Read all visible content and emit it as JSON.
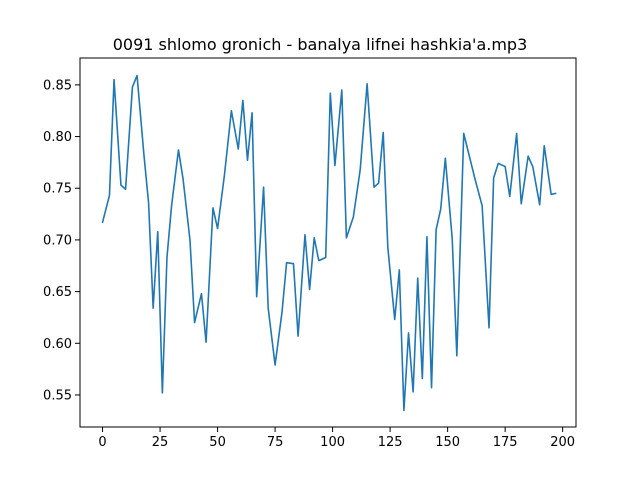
{
  "chart_data": {
    "type": "line",
    "title": "0091 shlomo gronich - banalya lifnei hashkia'a.mp3",
    "xlabel": "",
    "ylabel": "",
    "xlim": [
      -9.8,
      205.8
    ],
    "ylim": [
      0.519,
      0.876
    ],
    "x_ticks": [
      0,
      25,
      50,
      75,
      100,
      125,
      150,
      175,
      200
    ],
    "x_tick_labels": [
      "0",
      "25",
      "50",
      "75",
      "100",
      "125",
      "150",
      "175",
      "200"
    ],
    "y_ticks": [
      0.55,
      0.6,
      0.65,
      0.7,
      0.75,
      0.8,
      0.85
    ],
    "y_tick_labels": [
      "0.55",
      "0.60",
      "0.65",
      "0.70",
      "0.75",
      "0.80",
      "0.85"
    ],
    "grid": false,
    "line_color": "#1f77b4",
    "series": [
      {
        "x": [
          0,
          3,
          5,
          8,
          10,
          13,
          15,
          18,
          20,
          22,
          24,
          26,
          28,
          30,
          33,
          35,
          38,
          40,
          43,
          45,
          48,
          50,
          53,
          56,
          59,
          61,
          63,
          65,
          67,
          70,
          72,
          75,
          78,
          80,
          83,
          85,
          88,
          90,
          92,
          94,
          97,
          99,
          101,
          104,
          106,
          109,
          112,
          115,
          118,
          120,
          122,
          124,
          127,
          129,
          131,
          133,
          135,
          137,
          139,
          141,
          143,
          145,
          147,
          149,
          152,
          154,
          157,
          159,
          162,
          165,
          168,
          170,
          172,
          175,
          177,
          180,
          182,
          185,
          187,
          190,
          192,
          195,
          197
        ],
        "values": [
          0.717,
          0.743,
          0.855,
          0.753,
          0.749,
          0.848,
          0.859,
          0.782,
          0.736,
          0.634,
          0.708,
          0.552,
          0.683,
          0.733,
          0.787,
          0.759,
          0.7,
          0.62,
          0.648,
          0.601,
          0.731,
          0.711,
          0.763,
          0.825,
          0.788,
          0.835,
          0.777,
          0.823,
          0.645,
          0.751,
          0.634,
          0.579,
          0.63,
          0.678,
          0.677,
          0.607,
          0.705,
          0.652,
          0.702,
          0.68,
          0.683,
          0.842,
          0.772,
          0.845,
          0.702,
          0.722,
          0.768,
          0.851,
          0.751,
          0.755,
          0.804,
          0.693,
          0.623,
          0.671,
          0.535,
          0.61,
          0.553,
          0.663,
          0.566,
          0.703,
          0.557,
          0.71,
          0.73,
          0.779,
          0.701,
          0.588,
          0.803,
          0.785,
          0.758,
          0.733,
          0.615,
          0.76,
          0.774,
          0.771,
          0.742,
          0.803,
          0.735,
          0.781,
          0.771,
          0.734,
          0.791,
          0.744,
          0.745
        ]
      }
    ]
  }
}
